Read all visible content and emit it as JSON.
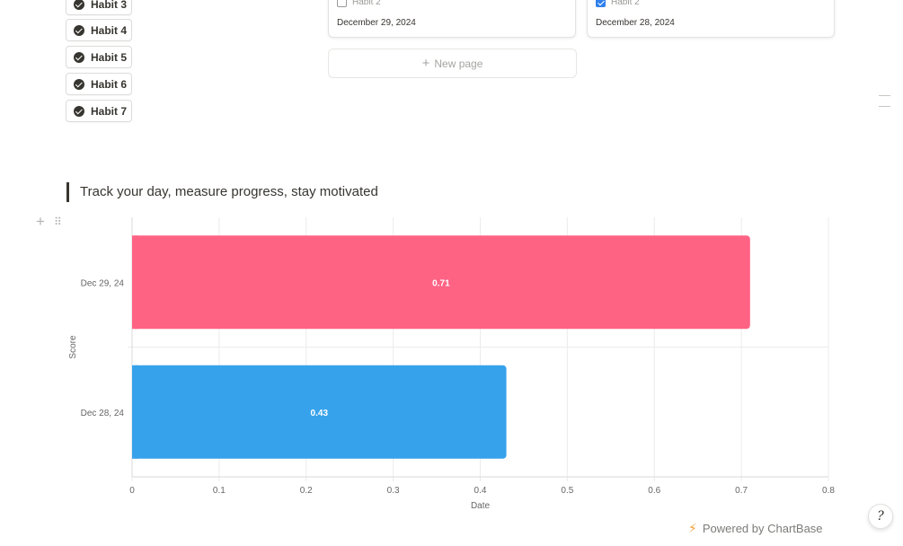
{
  "habits": [
    {
      "label": "Habit 3"
    },
    {
      "label": "Habit 4"
    },
    {
      "label": "Habit 5"
    },
    {
      "label": "Habit 6"
    },
    {
      "label": "Habit 7"
    }
  ],
  "cards": [
    {
      "checkbox_label": "Habit 2",
      "checked": false,
      "date": "December 29, 2024"
    },
    {
      "checkbox_label": "Habit 2",
      "checked": true,
      "date": "December 28, 2024"
    }
  ],
  "new_page_label": "New page",
  "quote": "Track your day, measure progress, stay motivated",
  "chart_data": {
    "type": "bar",
    "orientation": "horizontal",
    "categories": [
      "Dec 29, 24",
      "Dec 28, 24"
    ],
    "values": [
      0.71,
      0.43
    ],
    "colors": [
      "#ff6384",
      "#36a2eb"
    ],
    "xlabel": "Date",
    "ylabel": "Score",
    "xlim": [
      0,
      0.8
    ],
    "xticks": [
      "0",
      "0.1",
      "0.2",
      "0.3",
      "0.4",
      "0.5",
      "0.6",
      "0.7",
      "0.8"
    ],
    "grid": true,
    "data_labels": [
      "0.71",
      "0.43"
    ]
  },
  "footer": {
    "powered_by": "Powered by ChartBase",
    "help_icon": "help-icon"
  },
  "colors": {
    "text": "#37352f",
    "checkbox_checked": "#2f80ed",
    "bolt": "#f2a23c"
  }
}
